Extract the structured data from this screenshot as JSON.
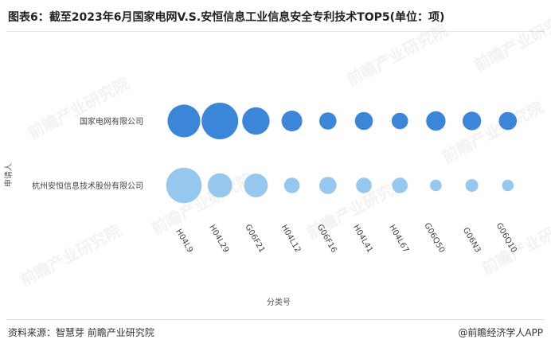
{
  "header": {
    "title": "图表6：截至2023年6月国家电网V.S.安恒信息工业信息安全专利技术TOP5(单位：项)"
  },
  "footer": {
    "source": "资料来源：智慧芽 前瞻产业研究院",
    "brand": "@前瞻经济学人APP"
  },
  "watermark": {
    "text": "前瞻产业研究院"
  },
  "colors": {
    "series_1": "#3b86d8",
    "series_2": "#96c8ef"
  },
  "chart_data": {
    "type": "scatter",
    "title": "",
    "xlabel": "分类号",
    "ylabel": "申请人",
    "categories": [
      "H04L9",
      "H04L29",
      "G06F21",
      "H04L12",
      "G06F16",
      "H04L41",
      "H04L67",
      "G06Q50",
      "G06N3",
      "G06Q10"
    ],
    "series": [
      {
        "name": "国家电网有限公司",
        "values": [
          40,
          50,
          28,
          16,
          11,
          12,
          10,
          14,
          13,
          12
        ]
      },
      {
        "name": "杭州安恒信息技术股份有限公司",
        "values": [
          47,
          22,
          21,
          9,
          11,
          9,
          9,
          5,
          6,
          5
        ]
      }
    ],
    "size_encoding": "bubble area proportional to value",
    "legend": "none",
    "grid": false
  }
}
